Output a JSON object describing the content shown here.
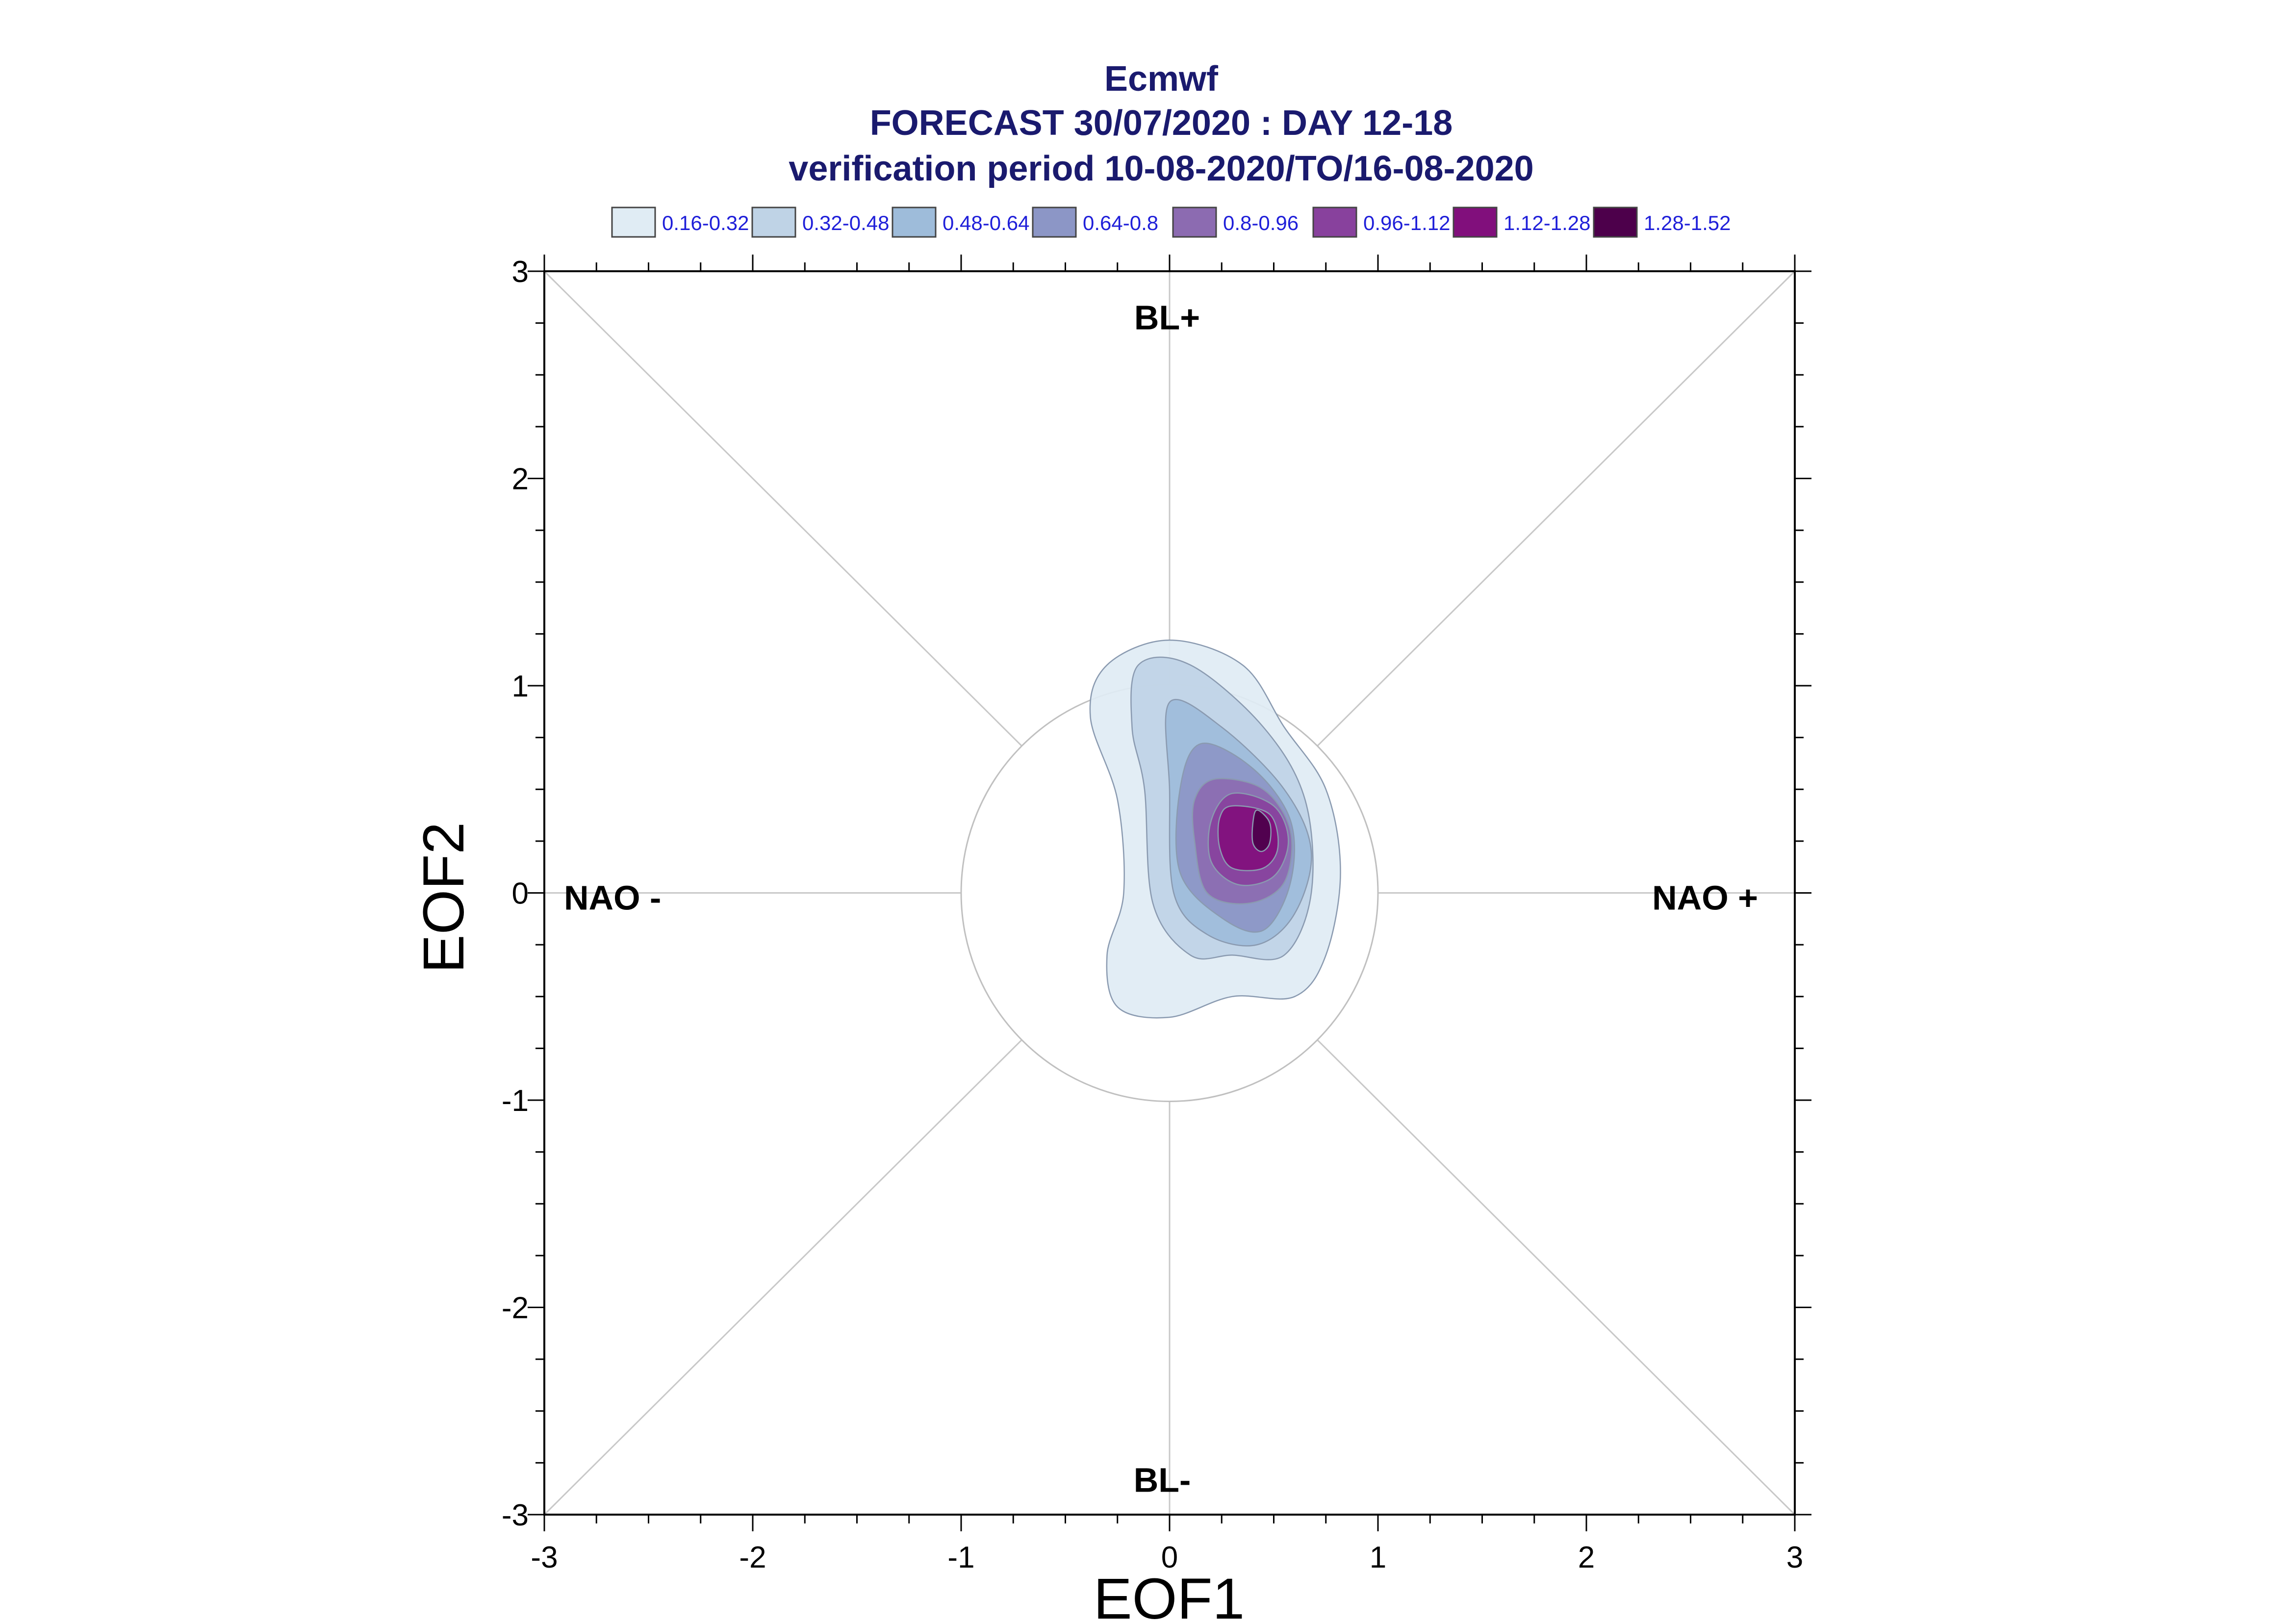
{
  "chart_data": {
    "type": "heatmap",
    "title_lines": [
      "Ecmwf",
      "FORECAST 30/07/2020 : DAY 12-18",
      "verification period 10-08-2020/TO/16-08-2020"
    ],
    "xlabel": "EOF1",
    "ylabel": "EOF2",
    "xlim": [
      -3,
      3
    ],
    "ylim": [
      -3,
      3
    ],
    "x_ticks": [
      "-3",
      "-2",
      "-1",
      "0",
      "1",
      "2",
      "3"
    ],
    "y_ticks": [
      "3",
      "2",
      "1",
      "0",
      "-1",
      "-2",
      "-3"
    ],
    "regime_labels": {
      "top": "BL+",
      "bottom": "BL-",
      "left": "NAO -",
      "right": "NAO +"
    },
    "reference_circle_radius": 1,
    "legend": [
      {
        "label": "0.16-0.32",
        "color": "#e0ecf4"
      },
      {
        "label": "0.32-0.48",
        "color": "#bfd3e6"
      },
      {
        "label": "0.48-0.64",
        "color": "#9ebcda"
      },
      {
        "label": "0.64-0.8",
        "color": "#8c96c6"
      },
      {
        "label": "0.8-0.96",
        "color": "#8c6bb1"
      },
      {
        "label": "0.96-1.12",
        "color": "#88419d"
      },
      {
        "label": "1.12-1.28",
        "color": "#810f7c"
      },
      {
        "label": "1.28-1.52",
        "color": "#4d004b"
      }
    ],
    "density_contours": [
      {
        "level": "0.16-0.32",
        "points": [
          [
            -0.3,
            1.1
          ],
          [
            0.0,
            1.22
          ],
          [
            0.35,
            1.1
          ],
          [
            0.55,
            0.8
          ],
          [
            0.75,
            0.5
          ],
          [
            0.82,
            0.1
          ],
          [
            0.75,
            -0.3
          ],
          [
            0.6,
            -0.5
          ],
          [
            0.3,
            -0.5
          ],
          [
            0.0,
            -0.6
          ],
          [
            -0.25,
            -0.55
          ],
          [
            -0.3,
            -0.3
          ],
          [
            -0.22,
            0.0
          ],
          [
            -0.25,
            0.45
          ],
          [
            -0.38,
            0.85
          ]
        ]
      },
      {
        "level": "0.32-0.48",
        "points": [
          [
            -0.15,
            1.1
          ],
          [
            0.1,
            1.1
          ],
          [
            0.45,
            0.8
          ],
          [
            0.65,
            0.45
          ],
          [
            0.68,
            0.0
          ],
          [
            0.55,
            -0.3
          ],
          [
            0.3,
            -0.3
          ],
          [
            0.1,
            -0.3
          ],
          [
            -0.08,
            -0.05
          ],
          [
            -0.12,
            0.5
          ],
          [
            -0.18,
            0.8
          ]
        ]
      },
      {
        "level": "0.48-0.64",
        "points": [
          [
            0.0,
            0.92
          ],
          [
            0.25,
            0.8
          ],
          [
            0.55,
            0.5
          ],
          [
            0.68,
            0.2
          ],
          [
            0.6,
            -0.1
          ],
          [
            0.42,
            -0.25
          ],
          [
            0.18,
            -0.2
          ],
          [
            0.02,
            0.0
          ],
          [
            0.0,
            0.5
          ]
        ]
      },
      {
        "level": "0.64-0.8",
        "points": [
          [
            0.15,
            0.72
          ],
          [
            0.4,
            0.6
          ],
          [
            0.58,
            0.35
          ],
          [
            0.58,
            0.05
          ],
          [
            0.45,
            -0.18
          ],
          [
            0.25,
            -0.12
          ],
          [
            0.05,
            0.1
          ],
          [
            0.05,
            0.5
          ]
        ]
      },
      {
        "level": "0.8-0.96",
        "points": [
          [
            0.22,
            0.55
          ],
          [
            0.45,
            0.5
          ],
          [
            0.58,
            0.3
          ],
          [
            0.55,
            0.05
          ],
          [
            0.38,
            -0.05
          ],
          [
            0.18,
            0.0
          ],
          [
            0.12,
            0.25
          ],
          [
            0.12,
            0.45
          ]
        ]
      },
      {
        "level": "0.96-1.12",
        "points": [
          [
            0.3,
            0.48
          ],
          [
            0.5,
            0.42
          ],
          [
            0.57,
            0.25
          ],
          [
            0.5,
            0.08
          ],
          [
            0.33,
            0.04
          ],
          [
            0.2,
            0.15
          ],
          [
            0.2,
            0.35
          ]
        ]
      },
      {
        "level": "1.12-1.28",
        "points": [
          [
            0.3,
            0.42
          ],
          [
            0.48,
            0.38
          ],
          [
            0.52,
            0.22
          ],
          [
            0.45,
            0.12
          ],
          [
            0.3,
            0.12
          ],
          [
            0.24,
            0.22
          ],
          [
            0.24,
            0.36
          ]
        ]
      },
      {
        "level": "1.28-1.52",
        "points": [
          [
            0.42,
            0.4
          ],
          [
            0.48,
            0.34
          ],
          [
            0.48,
            0.24
          ],
          [
            0.44,
            0.2
          ],
          [
            0.4,
            0.24
          ],
          [
            0.4,
            0.34
          ]
        ]
      }
    ]
  }
}
